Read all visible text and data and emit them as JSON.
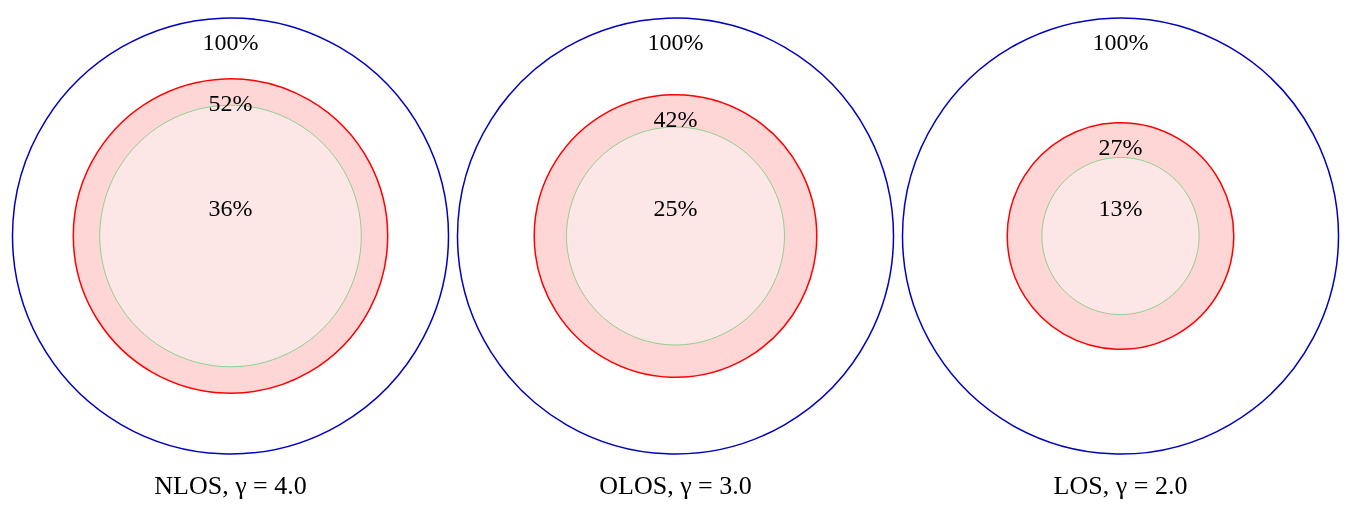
{
  "chart_data": [
    {
      "type": "other",
      "title": "NLOS, γ = 4.0",
      "values": [
        100,
        52,
        36
      ],
      "value_labels": [
        "100%",
        "52%",
        "36%"
      ],
      "colors": [
        "#0000c0",
        "#ff0000",
        "#90d090"
      ]
    },
    {
      "type": "other",
      "title": "OLOS, γ = 3.0",
      "values": [
        100,
        42,
        25
      ],
      "value_labels": [
        "100%",
        "42%",
        "25%"
      ],
      "colors": [
        "#0000c0",
        "#ff0000",
        "#90d090"
      ]
    },
    {
      "type": "other",
      "title": "LOS, γ = 2.0",
      "values": [
        100,
        27,
        13
      ],
      "value_labels": [
        "100%",
        "27%",
        "13%"
      ],
      "colors": [
        "#0000c0",
        "#ff0000",
        "#90d090"
      ]
    }
  ]
}
